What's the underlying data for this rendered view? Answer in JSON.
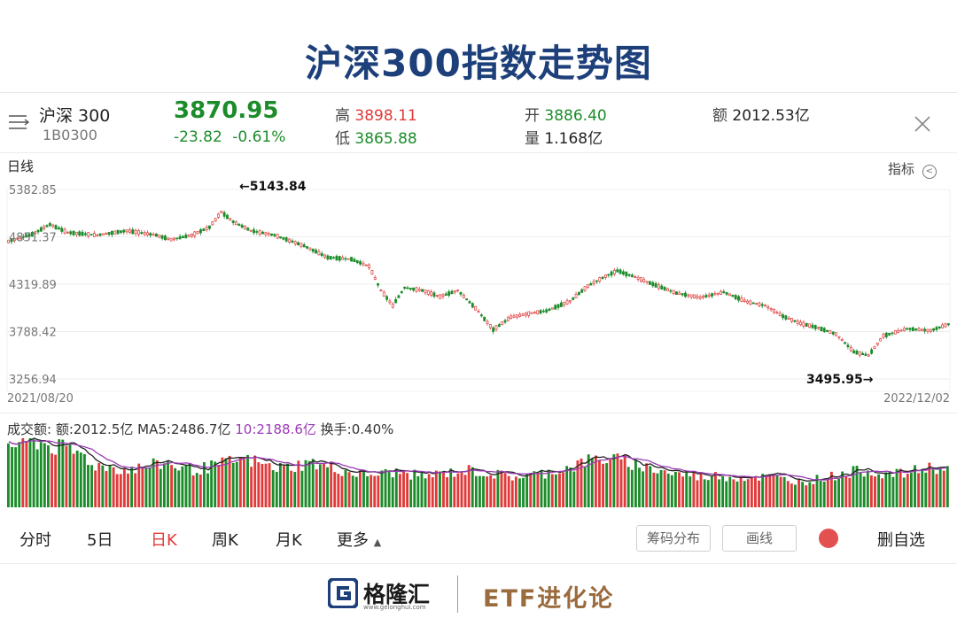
{
  "page_title": "沪深300指数走势图",
  "quote": {
    "name": "沪深 300",
    "code": "1B0300",
    "price": "3870.95",
    "change": "-23.82",
    "change_pct": "-0.61%",
    "high_label": "高",
    "high": "3898.11",
    "low_label": "低",
    "low": "3865.88",
    "open_label": "开",
    "open": "3886.40",
    "volume_label": "量",
    "volume": "1.168亿",
    "amount_label": "额",
    "amount": "2012.53亿"
  },
  "chart_header": {
    "period": "日线",
    "indicator": "指标"
  },
  "chart_data": {
    "type": "candlestick",
    "x_start": "2021/08/20",
    "x_end": "2022/12/02",
    "y_ticks": [
      "5382.85",
      "4851.37",
      "4319.89",
      "3788.42",
      "3256.94"
    ],
    "ylim": [
      3256.94,
      5382.85
    ],
    "high_annotation": "←5143.84",
    "high_value": 5143.84,
    "low_annotation": "3495.95→",
    "low_value": 3495.95,
    "path_points": [
      [
        0,
        4800
      ],
      [
        8,
        4880
      ],
      [
        14,
        4990
      ],
      [
        20,
        4900
      ],
      [
        30,
        4870
      ],
      [
        40,
        4920
      ],
      [
        50,
        4870
      ],
      [
        55,
        4820
      ],
      [
        62,
        4870
      ],
      [
        68,
        4960
      ],
      [
        72,
        5130
      ],
      [
        76,
        5020
      ],
      [
        82,
        4920
      ],
      [
        90,
        4870
      ],
      [
        100,
        4750
      ],
      [
        108,
        4620
      ],
      [
        116,
        4600
      ],
      [
        122,
        4520
      ],
      [
        126,
        4250
      ],
      [
        130,
        4080
      ],
      [
        134,
        4280
      ],
      [
        140,
        4250
      ],
      [
        146,
        4180
      ],
      [
        152,
        4250
      ],
      [
        158,
        4050
      ],
      [
        164,
        3810
      ],
      [
        170,
        3950
      ],
      [
        176,
        3990
      ],
      [
        182,
        4020
      ],
      [
        190,
        4130
      ],
      [
        196,
        4300
      ],
      [
        202,
        4410
      ],
      [
        206,
        4470
      ],
      [
        212,
        4400
      ],
      [
        218,
        4320
      ],
      [
        226,
        4220
      ],
      [
        234,
        4170
      ],
      [
        242,
        4230
      ],
      [
        250,
        4120
      ],
      [
        256,
        4080
      ],
      [
        262,
        3960
      ],
      [
        268,
        3880
      ],
      [
        274,
        3830
      ],
      [
        280,
        3760
      ],
      [
        286,
        3560
      ],
      [
        291,
        3520
      ],
      [
        296,
        3740
      ],
      [
        304,
        3820
      ],
      [
        312,
        3800
      ],
      [
        318,
        3870
      ]
    ],
    "volume_label": "成交额:",
    "volume_amount": "额:2012.5亿",
    "ma5": "MA5:2486.7亿",
    "ma10": "10:2188.6亿",
    "turnover": "换手:0.40%",
    "volume_levels": [
      0.92,
      0.95,
      0.98,
      0.9,
      0.85,
      0.8,
      0.62,
      0.6,
      0.55,
      0.58,
      0.62,
      0.66,
      0.58,
      0.55,
      0.6,
      0.65,
      0.7,
      0.68,
      0.6,
      0.58,
      0.62,
      0.66,
      0.6,
      0.55,
      0.5,
      0.48,
      0.5,
      0.52,
      0.48,
      0.46,
      0.5,
      0.52,
      0.55,
      0.5,
      0.48,
      0.45,
      0.47,
      0.5,
      0.55,
      0.6,
      0.68,
      0.72,
      0.7,
      0.66,
      0.6,
      0.55,
      0.5,
      0.48,
      0.45,
      0.47,
      0.45,
      0.44,
      0.45,
      0.44,
      0.4,
      0.38,
      0.42,
      0.46,
      0.5,
      0.55,
      0.52,
      0.48,
      0.5,
      0.55,
      0.6,
      0.55
    ],
    "colors": {
      "up": "#e03a3a",
      "down": "#1c8c2a",
      "ma5": "#222222",
      "ma10": "#9b3bb5"
    }
  },
  "tabs": [
    "分时",
    "5日",
    "日K",
    "周K",
    "月K",
    "更多"
  ],
  "active_tab": "日K",
  "buttons": {
    "chip_distribution": "筹码分布",
    "line": "画线",
    "delete_watch": "删自选"
  },
  "footer": {
    "brand": "格隆汇",
    "brand_url": "www.gelonghui.com",
    "etf_brand": "ETF进化论"
  },
  "colors": {
    "title": "#1d3f7a",
    "up": "#e03a3a",
    "down": "#1c8c2a",
    "accent_brown": "#9a6b3c"
  }
}
